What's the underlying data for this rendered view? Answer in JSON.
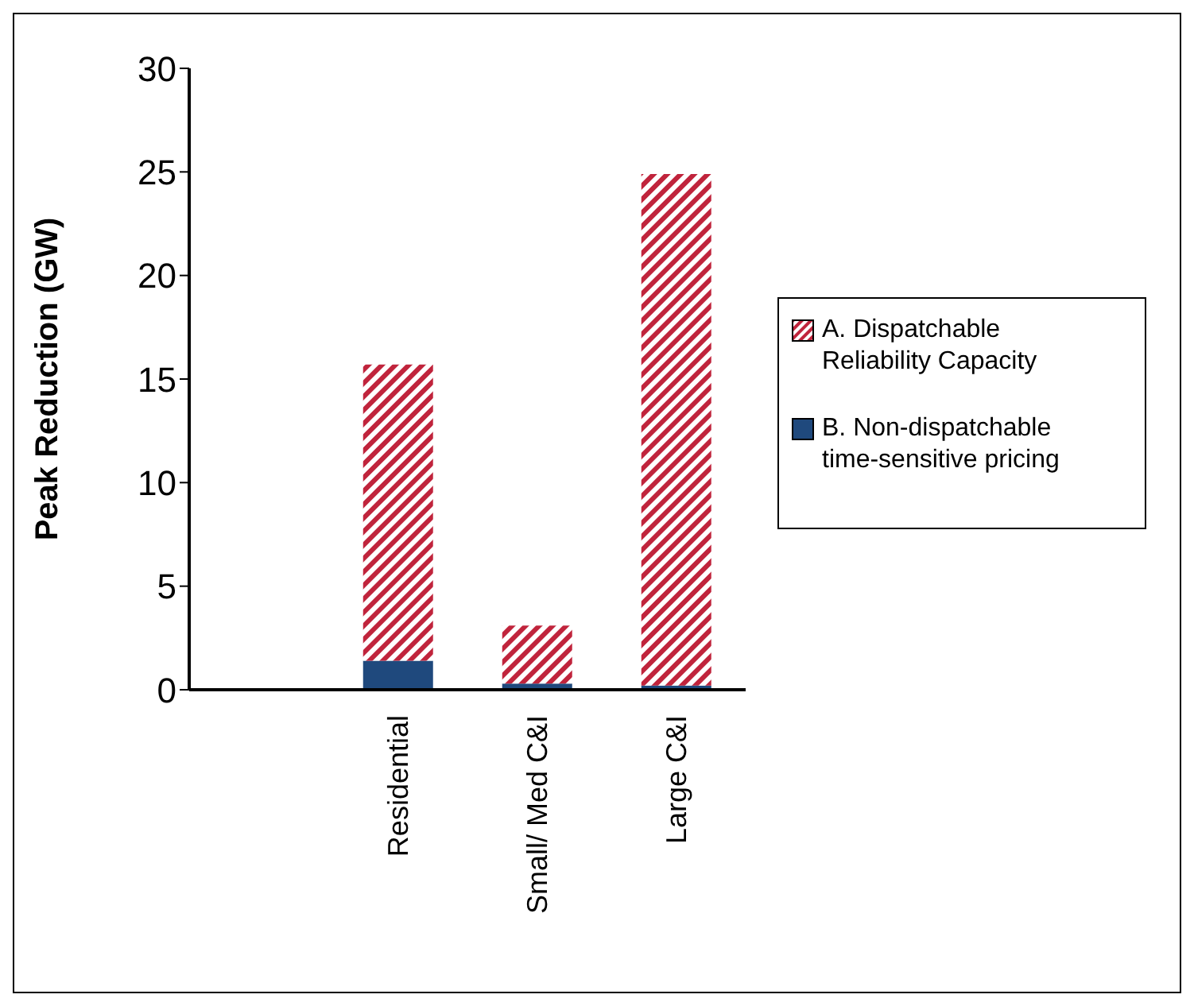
{
  "chart_data": {
    "type": "bar",
    "stacked": true,
    "ylabel": "Peak Reduction (GW)",
    "categories": [
      null,
      "Residential",
      "Small/ Med C&I",
      "Large C&I"
    ],
    "series": [
      {
        "name": "B. Non-dispatchable time-sensitive pricing",
        "color": "#1f497d",
        "values": [
          null,
          1.4,
          0.3,
          0.2
        ]
      },
      {
        "name": "A. Dispatchable Reliability Capacity",
        "color": "#c0243c",
        "values": [
          null,
          14.3,
          2.8,
          24.7
        ]
      }
    ],
    "ylim": [
      0,
      30
    ],
    "yticks": [
      0,
      5,
      10,
      15,
      20,
      25,
      30
    ],
    "legend": "right"
  }
}
